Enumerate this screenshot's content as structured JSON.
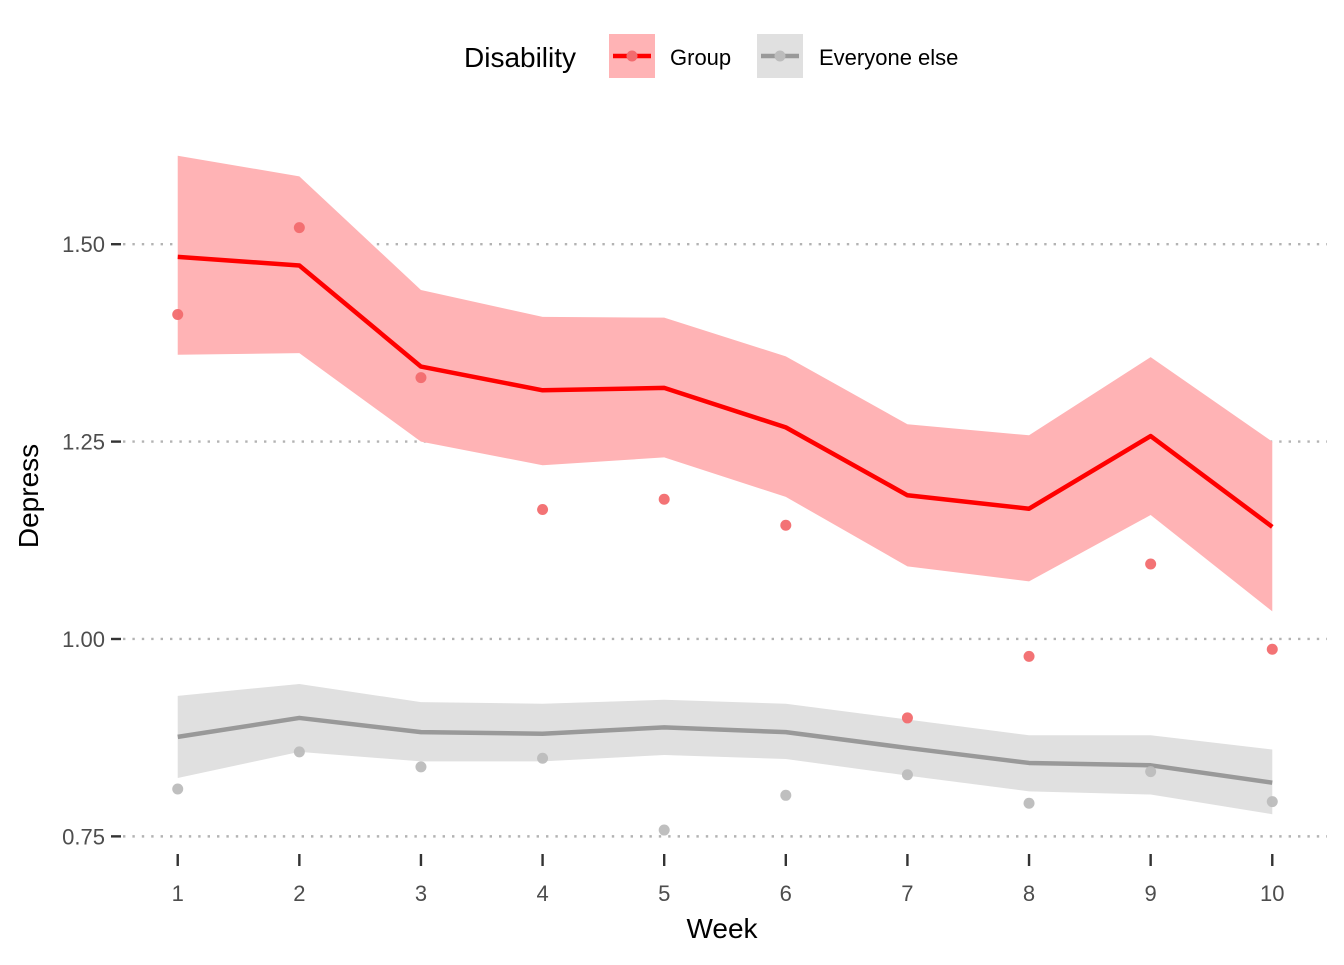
{
  "chart_data": {
    "type": "line",
    "xlabel": "Week",
    "ylabel": "Depress",
    "x": [
      1,
      2,
      3,
      4,
      5,
      6,
      7,
      8,
      9,
      10
    ],
    "x_ticks": [
      "1",
      "2",
      "3",
      "4",
      "5",
      "6",
      "7",
      "8",
      "9",
      "10"
    ],
    "xlim": [
      0.55,
      10.45
    ],
    "y_ticks": [
      0.75,
      1.0,
      1.25,
      1.5
    ],
    "y_tick_labels": [
      "0.75",
      "1.00",
      "1.25",
      "1.50"
    ],
    "ylim": [
      0.715,
      1.67
    ],
    "grid": "horizontal dotted",
    "legend": {
      "title": "Disability",
      "position": "top"
    },
    "series": [
      {
        "name": "Group",
        "color": "#ff0000",
        "ribbon_color": "#ffb3b5",
        "point_color": "#f26b6e",
        "line": [
          1.484,
          1.473,
          1.345,
          1.315,
          1.318,
          1.268,
          1.182,
          1.165,
          1.257,
          1.142
        ],
        "ribbon_low": [
          1.36,
          1.362,
          1.25,
          1.22,
          1.23,
          1.18,
          1.092,
          1.073,
          1.157,
          1.035
        ],
        "ribbon_high": [
          1.612,
          1.586,
          1.442,
          1.408,
          1.407,
          1.358,
          1.272,
          1.258,
          1.357,
          1.25
        ],
        "points": [
          1.411,
          1.521,
          1.331,
          1.164,
          1.177,
          1.144,
          0.9,
          0.978,
          1.095,
          0.987
        ]
      },
      {
        "name": "Everyone else",
        "color": "#999999",
        "ribbon_color": "#e0e0e0",
        "point_color": "#bcbcbc",
        "line": [
          0.876,
          0.9,
          0.882,
          0.88,
          0.888,
          0.882,
          0.862,
          0.843,
          0.84,
          0.818
        ],
        "ribbon_low": [
          0.824,
          0.857,
          0.845,
          0.845,
          0.853,
          0.848,
          0.827,
          0.807,
          0.803,
          0.778
        ],
        "ribbon_high": [
          0.928,
          0.943,
          0.92,
          0.918,
          0.923,
          0.918,
          0.898,
          0.878,
          0.878,
          0.86
        ],
        "points": [
          0.81,
          0.857,
          0.838,
          0.849,
          0.758,
          0.802,
          0.828,
          0.792,
          0.832,
          0.794
        ]
      }
    ]
  }
}
